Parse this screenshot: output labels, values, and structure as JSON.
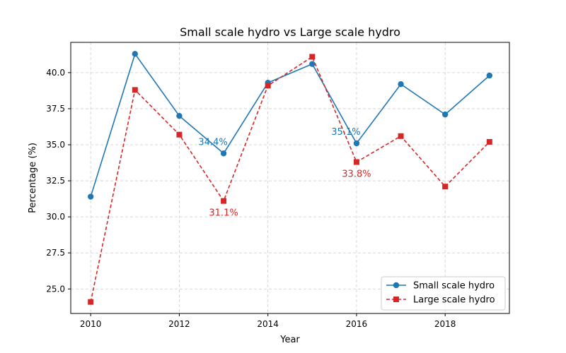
{
  "chart_data": {
    "type": "line",
    "title": "Small scale hydro vs Large scale hydro",
    "xlabel": "Year",
    "ylabel": "Percentage (%)",
    "x": [
      2010,
      2011,
      2012,
      2013,
      2014,
      2015,
      2016,
      2017,
      2018,
      2019
    ],
    "xlim": [
      2009.55,
      2019.45
    ],
    "ylim": [
      23.3,
      42.1
    ],
    "x_ticks": [
      2010,
      2012,
      2014,
      2016,
      2018
    ],
    "x_tick_labels": [
      "2010",
      "2012",
      "2014",
      "2016",
      "2018"
    ],
    "y_ticks": [
      25.0,
      27.5,
      30.0,
      32.5,
      35.0,
      37.5,
      40.0
    ],
    "y_tick_labels": [
      "25.0",
      "27.5",
      "30.0",
      "32.5",
      "35.0",
      "37.5",
      "40.0"
    ],
    "grid": true,
    "legend_position": "lower-right",
    "series": [
      {
        "name": "Small scale hydro",
        "values": [
          31.4,
          41.3,
          37.0,
          34.4,
          39.3,
          40.6,
          35.1,
          39.2,
          37.1,
          39.8
        ],
        "color": "#1f77b4",
        "line_style": "solid",
        "marker": "circle"
      },
      {
        "name": "Large scale hydro",
        "values": [
          24.1,
          38.8,
          35.7,
          31.1,
          39.1,
          41.1,
          33.8,
          35.6,
          32.1,
          35.2
        ],
        "color": "#d62728",
        "line_style": "dashed",
        "marker": "square"
      }
    ],
    "annotations": [
      {
        "text": "34.4%",
        "x": 2013,
        "y": 34.4,
        "series": 0,
        "color": "#1f77b4"
      },
      {
        "text": "35.1%",
        "x": 2016,
        "y": 35.1,
        "series": 0,
        "color": "#1f77b4"
      },
      {
        "text": "31.1%",
        "x": 2013,
        "y": 31.1,
        "series": 1,
        "color": "#d62728"
      },
      {
        "text": "33.8%",
        "x": 2016,
        "y": 33.8,
        "series": 1,
        "color": "#d62728"
      }
    ]
  }
}
